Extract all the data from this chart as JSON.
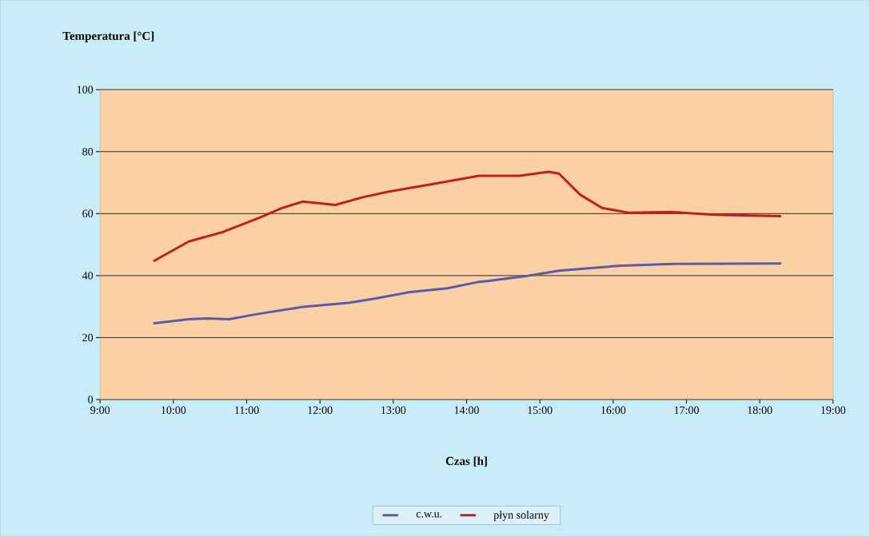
{
  "chart_data": {
    "type": "line",
    "ylabel": "Temperatura [°C]",
    "xlabel": "Czas [h]",
    "xlim": [
      9,
      19
    ],
    "ylim": [
      0,
      100
    ],
    "xticks": [
      {
        "value": 9,
        "label": "9:00"
      },
      {
        "value": 10,
        "label": "10:00"
      },
      {
        "value": 11,
        "label": "11:00"
      },
      {
        "value": 12,
        "label": "12:00"
      },
      {
        "value": 13,
        "label": "13:00"
      },
      {
        "value": 14,
        "label": "14:00"
      },
      {
        "value": 15,
        "label": "15:00"
      },
      {
        "value": 16,
        "label": "16:00"
      },
      {
        "value": 17,
        "label": "17:00"
      },
      {
        "value": 18,
        "label": "18:00"
      },
      {
        "value": 19,
        "label": "19:00"
      }
    ],
    "yticks": [
      0,
      20,
      40,
      60,
      80,
      100
    ],
    "grid": "y",
    "legend": "bottom",
    "line_style": "solid",
    "series": [
      {
        "name": "c.w.u.",
        "color": "#5a5aa8",
        "x": [
          9.74,
          10.21,
          10.47,
          10.76,
          11.12,
          11.77,
          12.39,
          12.76,
          13.23,
          13.74,
          14.17,
          14.28,
          14.83,
          15.26,
          16.1,
          16.83,
          18.28
        ],
        "values": [
          24.6,
          25.9,
          26.2,
          25.9,
          27.5,
          29.9,
          31.2,
          32.6,
          34.7,
          35.9,
          38.0,
          38.2,
          39.9,
          41.6,
          43.2,
          43.8,
          43.9
        ]
      },
      {
        "name": "płyn solarny",
        "color": "#c0201c",
        "x": [
          9.74,
          10.21,
          10.68,
          11.19,
          11.48,
          11.77,
          12.21,
          12.57,
          12.94,
          13.48,
          14.17,
          14.72,
          15.12,
          15.26,
          15.55,
          15.85,
          16.21,
          16.79,
          17.37,
          18.28
        ],
        "values": [
          44.8,
          51.0,
          54.1,
          58.8,
          61.8,
          63.9,
          62.8,
          65.2,
          67.1,
          69.3,
          72.2,
          72.2,
          73.5,
          72.9,
          66.1,
          61.8,
          60.3,
          60.5,
          59.6,
          59.2
        ]
      }
    ]
  }
}
